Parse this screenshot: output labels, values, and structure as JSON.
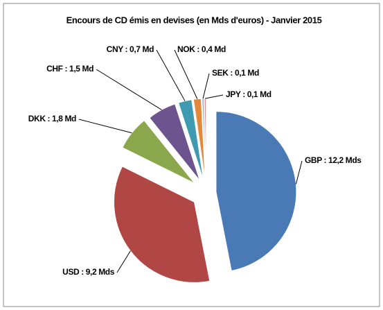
{
  "chart_data": {
    "type": "pie",
    "title": "Encours de CD émis en devises (en Mds d'euros) - Janvier 2015",
    "categories": [
      "GBP : 12,2 Mds",
      "USD : 9,2 Mds",
      "DKK : 1,8 Md",
      "CHF : 1,5 Md",
      "CNY : 0,7 Md",
      "NOK : 0,4 Md",
      "SEK : 0,1 Md",
      "JPY : 0,1 Md"
    ],
    "values": [
      12.2,
      9.2,
      1.8,
      1.5,
      0.7,
      0.4,
      0.1,
      0.1
    ],
    "colors": [
      "#4a7ab5",
      "#b04744",
      "#8aa84b",
      "#6e548e",
      "#3d9ab0",
      "#e3883a",
      "#95b3d7",
      "#d99694"
    ]
  }
}
